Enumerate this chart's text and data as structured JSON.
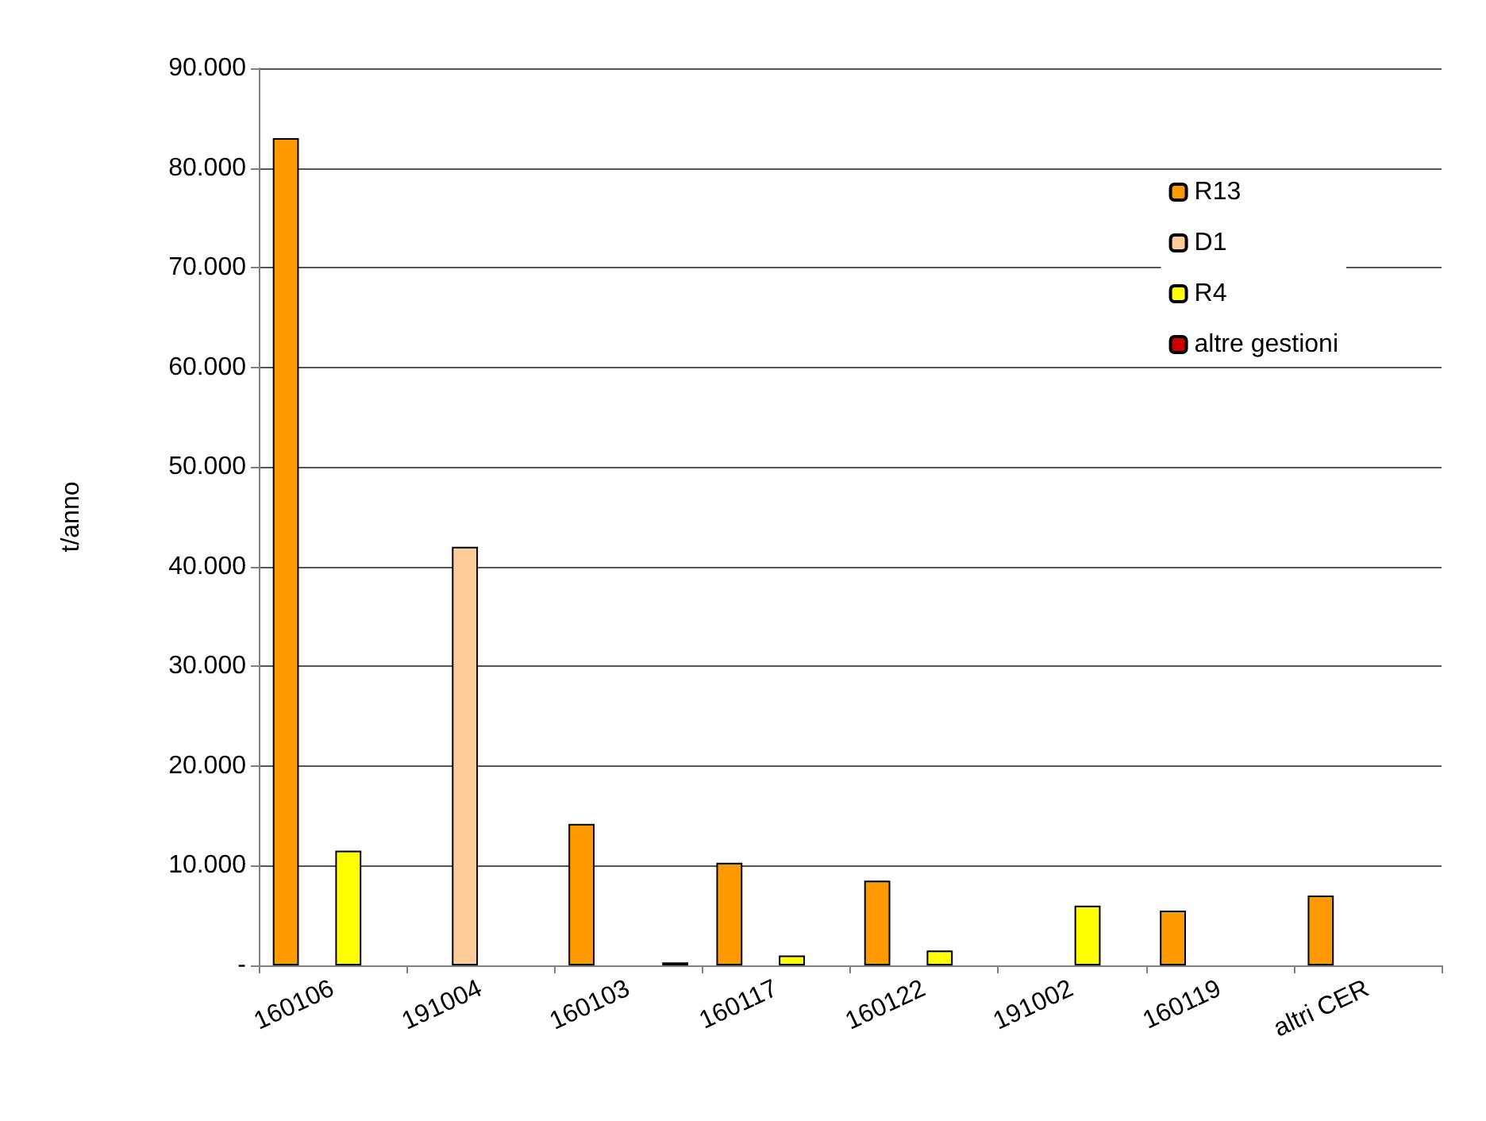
{
  "chart_data": {
    "type": "bar",
    "ylabel": "t/anno",
    "categories": [
      "160106",
      "191004",
      "160103",
      "160117",
      "160122",
      "191002",
      "160119",
      "altri CER"
    ],
    "series": [
      {
        "name": "R13",
        "color": "#ff9900",
        "values": [
          83000,
          null,
          14200,
          10300,
          8500,
          null,
          5500,
          7000
        ]
      },
      {
        "name": "D1",
        "color": "#ffcc99",
        "values": [
          null,
          42000,
          null,
          null,
          null,
          null,
          null,
          null
        ]
      },
      {
        "name": "R4",
        "color": "#ffff00",
        "values": [
          11500,
          null,
          null,
          1000,
          1500,
          6000,
          null,
          null
        ]
      },
      {
        "name": "altre gestioni",
        "color": "#cc0000",
        "values": [
          null,
          null,
          300,
          null,
          null,
          null,
          null,
          null
        ]
      }
    ],
    "ylim": [
      0,
      90000
    ],
    "yticks": [
      {
        "value": 0,
        "label": "-"
      },
      {
        "value": 10000,
        "label": "10.000"
      },
      {
        "value": 20000,
        "label": "20.000"
      },
      {
        "value": 30000,
        "label": "30.000"
      },
      {
        "value": 40000,
        "label": "40.000"
      },
      {
        "value": 50000,
        "label": "50.000"
      },
      {
        "value": 60000,
        "label": "60.000"
      },
      {
        "value": 70000,
        "label": "70.000"
      },
      {
        "value": 80000,
        "label": "80.000"
      },
      {
        "value": 90000,
        "label": "90.000"
      }
    ],
    "grid": "y",
    "legend": "top right"
  }
}
